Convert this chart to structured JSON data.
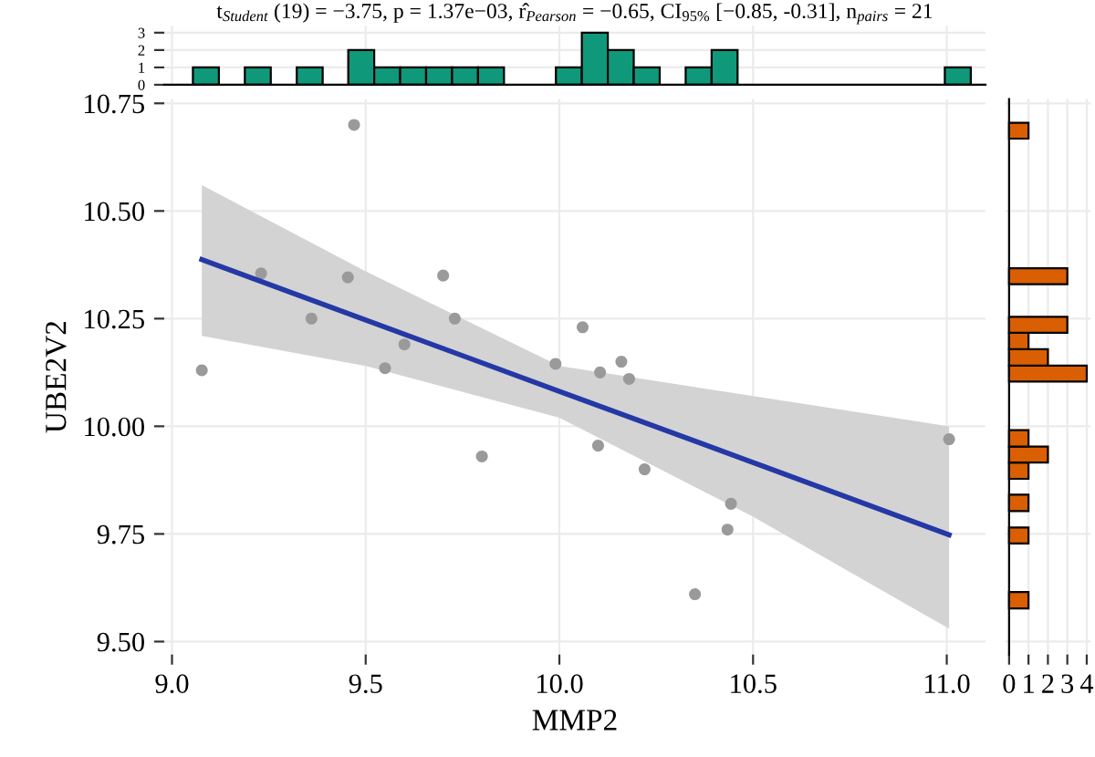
{
  "chart_data": [
    {
      "type": "histogram",
      "subtitle": "t$_{Student}$ (19) = −3.75, p = 1.37e−03, r̂$_{Pearson}$ = −0.65, CI$_{95%}$ [−0.85, -0.31], n$_{pairs}$ = 21",
      "bins": [
        9.054,
        9.121,
        9.188,
        9.255,
        9.322,
        9.389,
        9.455,
        9.522,
        9.589,
        9.656,
        9.723,
        9.79,
        9.857,
        9.924,
        9.991,
        10.058,
        10.125,
        10.192,
        10.259,
        10.326,
        10.393,
        10.46,
        10.527,
        10.594,
        10.661,
        10.728,
        10.795,
        10.861,
        10.928,
        10.995,
        11.062
      ],
      "values": [
        1,
        0,
        1,
        0,
        1,
        0,
        2,
        1,
        1,
        1,
        1,
        1,
        0,
        0,
        1,
        3,
        2,
        1,
        0,
        1,
        2,
        0,
        0,
        0,
        0,
        0,
        0,
        0,
        0,
        1
      ],
      "color": "#10987a",
      "xlim": [
        8.98,
        11.1
      ],
      "ylim": [
        0,
        3.4
      ],
      "yticks": [
        0,
        1,
        2,
        3
      ],
      "xticks": [
        9,
        9.5,
        10,
        10.5,
        11
      ],
      "grid": true,
      "tick_labels": "y"
    },
    {
      "type": "scatter",
      "xlabel": "MMP2",
      "ylabel": "UBE2V2",
      "series": [
        {
          "type": "scatter",
          "color": "#9a9a9a",
          "marker": "circle",
          "x": [
            9.077,
            9.23,
            9.36,
            9.454,
            9.47,
            9.55,
            9.6,
            9.7,
            9.73,
            9.8,
            9.99,
            10.06,
            10.105,
            10.1,
            10.16,
            10.18,
            10.22,
            10.443,
            10.434,
            10.35,
            11.006
          ],
          "values": [
            10.13,
            10.355,
            10.25,
            10.346,
            10.7,
            10.135,
            10.19,
            10.35,
            10.25,
            9.93,
            10.145,
            10.23,
            10.125,
            9.955,
            10.15,
            10.11,
            9.9,
            9.82,
            9.76,
            9.61,
            9.97
          ]
        },
        {
          "type": "line",
          "color": "#2438a6",
          "line_style": "solid",
          "x": [
            9.077,
            9.5,
            10.0,
            10.5,
            11.006
          ],
          "values": [
            10.387,
            10.247,
            10.081,
            9.916,
            9.748
          ],
          "lower": [
            10.21,
            10.14,
            10.02,
            9.79,
            9.53
          ],
          "upper": [
            10.56,
            10.36,
            10.14,
            10.07,
            10.0
          ]
        }
      ],
      "xlim": [
        8.98,
        11.1
      ],
      "ylim": [
        9.47,
        10.76
      ],
      "xticks": [
        {
          "value": 9.0,
          "label": "9.0"
        },
        {
          "value": 9.5,
          "label": "9.5"
        },
        {
          "value": 10.0,
          "label": "10.0"
        },
        {
          "value": 10.5,
          "label": "10.5"
        },
        {
          "value": 11.0,
          "label": "11.0"
        }
      ],
      "yticks": [
        {
          "value": 9.5,
          "label": "9.50"
        },
        {
          "value": 9.75,
          "label": "9.75"
        },
        {
          "value": 10.0,
          "label": "10.00"
        },
        {
          "value": 10.25,
          "label": "10.25"
        },
        {
          "value": 10.5,
          "label": "10.50"
        },
        {
          "value": 10.75,
          "label": "10.75"
        }
      ],
      "grid": true
    },
    {
      "type": "histogram",
      "orientation": "horizontal",
      "bins": [
        9.577,
        9.615,
        9.652,
        9.69,
        9.728,
        9.765,
        9.803,
        9.841,
        9.878,
        9.916,
        9.953,
        9.991,
        10.029,
        10.066,
        10.104,
        10.141,
        10.179,
        10.217,
        10.254,
        10.292,
        10.33,
        10.367,
        10.405,
        10.442,
        10.48,
        10.518,
        10.555,
        10.593,
        10.63,
        10.668,
        10.705
      ],
      "values": [
        1,
        0,
        0,
        0,
        1,
        0,
        1,
        0,
        1,
        2,
        1,
        0,
        0,
        0,
        4,
        2,
        1,
        3,
        0,
        0,
        3,
        0,
        0,
        0,
        0,
        0,
        0,
        0,
        0,
        1
      ],
      "color": "#d95f02",
      "ylim": [
        9.47,
        10.76
      ],
      "xlim": [
        -0.2,
        4.2
      ],
      "xticks": [
        0,
        1,
        2,
        3,
        4
      ],
      "yticks": [
        9.5,
        9.75,
        10,
        10.25,
        10.5,
        10.75
      ],
      "grid": true,
      "tick_labels": "x"
    }
  ]
}
